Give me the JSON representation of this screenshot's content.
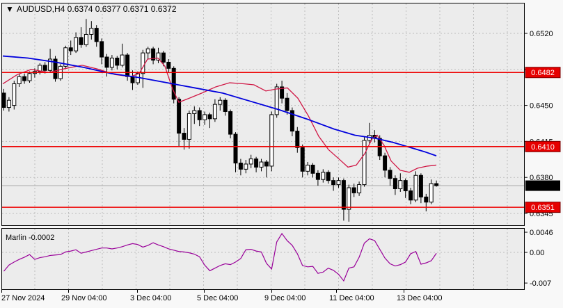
{
  "header": {
    "dropdown_icon": "▼",
    "title": "AUDUSD,H4 0.6374 0.6377 0.6371 0.6372",
    "symbol": "AUDUSD",
    "timeframe": "H4",
    "ohlc": {
      "open": "0.6374",
      "high": "0.6377",
      "low": "0.6371",
      "close": "0.6372"
    }
  },
  "indicator_header": {
    "label": "Marlin -0.0002",
    "name": "Marlin",
    "value": "-0.0002"
  },
  "price_axis": {
    "ticks": [
      "0.6520",
      "0.6485",
      "0.6450",
      "0.6415",
      "0.6380",
      "0.6345"
    ]
  },
  "indicator_axis": {
    "ticks": [
      "0.0046",
      "0.00",
      "-0.007"
    ]
  },
  "time_axis": {
    "labels": [
      "27 Nov 2024",
      "29 Nov 04:00",
      "3 Dec 04:00",
      "5 Dec 04:00",
      "9 Dec 04:00",
      "11 Dec 04:00",
      "13 Dec 04:00"
    ]
  },
  "levels": [
    {
      "value": 0.6482,
      "label": "0.6482"
    },
    {
      "value": 0.641,
      "label": "0.6410"
    },
    {
      "value": 0.6351,
      "label": "0.6351"
    }
  ],
  "current_price": {
    "value": 0.6372,
    "label": "0.6372"
  },
  "colors": {
    "page_bg": "#f8f8f8",
    "panel_bg": "#ececec",
    "grid": "#bdbdbd",
    "border": "#000000",
    "bull_candle": "#ffffff",
    "bear_candle": "#000000",
    "candle_outline": "#000000",
    "ma_blue": "#0000dd",
    "ma_red": "#d01745",
    "level_line": "#ee0000",
    "level_badge_bg": "#e60000",
    "current_badge_bg": "#000000",
    "badge_text": "#ffffff",
    "current_price_line": "#aaaaaa",
    "marlin_line": "#990099",
    "axis_text": "#000000"
  },
  "chart_data": [
    {
      "type": "candlestick",
      "title": "AUDUSD,H4",
      "timeframe": "H4",
      "ylim": [
        0.6337,
        0.6549
      ],
      "y_ticks": [
        0.652,
        0.6485,
        0.645,
        0.6415,
        0.638,
        0.6345
      ],
      "x_tick_labels": [
        "27 Nov 2024",
        "29 Nov 04:00",
        "3 Dec 04:00",
        "5 Dec 04:00",
        "9 Dec 04:00",
        "11 Dec 04:00",
        "13 Dec 04:00"
      ],
      "levels": [
        0.6482,
        0.641,
        0.6351
      ],
      "current_price": 0.6372,
      "candles_ohlc": [
        [
          0.6462,
          0.6466,
          0.6445,
          0.6448
        ],
        [
          0.6448,
          0.6458,
          0.6444,
          0.6455
        ],
        [
          0.645,
          0.6474,
          0.6446,
          0.6471
        ],
        [
          0.6471,
          0.6481,
          0.6468,
          0.6478
        ],
        [
          0.6478,
          0.6481,
          0.6471,
          0.6474
        ],
        [
          0.6474,
          0.6483,
          0.6472,
          0.6481
        ],
        [
          0.6481,
          0.6486,
          0.6477,
          0.6483
        ],
        [
          0.6483,
          0.6491,
          0.648,
          0.6489
        ],
        [
          0.6489,
          0.6492,
          0.6481,
          0.6484
        ],
        [
          0.6484,
          0.6505,
          0.6482,
          0.6495
        ],
        [
          0.6495,
          0.6498,
          0.6473,
          0.6476
        ],
        [
          0.6476,
          0.649,
          0.6474,
          0.6488
        ],
        [
          0.6488,
          0.6508,
          0.6486,
          0.6506
        ],
        [
          0.6506,
          0.6513,
          0.6499,
          0.6503
        ],
        [
          0.6503,
          0.6521,
          0.6501,
          0.6516
        ],
        [
          0.6516,
          0.6526,
          0.6506,
          0.6509
        ],
        [
          0.6509,
          0.6534,
          0.6507,
          0.6519
        ],
        [
          0.6519,
          0.6532,
          0.6514,
          0.6525
        ],
        [
          0.6525,
          0.6528,
          0.6507,
          0.6512
        ],
        [
          0.6512,
          0.6515,
          0.649,
          0.6497
        ],
        [
          0.6497,
          0.65,
          0.6478,
          0.6487
        ],
        [
          0.6487,
          0.6499,
          0.6484,
          0.6496
        ],
        [
          0.6496,
          0.6498,
          0.6485,
          0.6489
        ],
        [
          0.6489,
          0.651,
          0.6487,
          0.6499
        ],
        [
          0.6499,
          0.6501,
          0.6474,
          0.6478
        ],
        [
          0.6478,
          0.6484,
          0.6465,
          0.6472
        ],
        [
          0.6472,
          0.6483,
          0.647,
          0.6481
        ],
        [
          0.6481,
          0.6504,
          0.6467,
          0.6501
        ],
        [
          0.6501,
          0.6507,
          0.6495,
          0.6505
        ],
        [
          0.6505,
          0.6507,
          0.649,
          0.6494
        ],
        [
          0.6494,
          0.6506,
          0.6491,
          0.6501
        ],
        [
          0.6501,
          0.6503,
          0.6488,
          0.6492
        ],
        [
          0.6492,
          0.6495,
          0.6482,
          0.6486
        ],
        [
          0.6486,
          0.6488,
          0.6452,
          0.6456
        ],
        [
          0.6456,
          0.6458,
          0.641,
          0.6423
        ],
        [
          0.6423,
          0.6428,
          0.6407,
          0.6417
        ],
        [
          0.6417,
          0.6445,
          0.6408,
          0.6442
        ],
        [
          0.6442,
          0.6449,
          0.6432,
          0.6445
        ],
        [
          0.6445,
          0.6448,
          0.643,
          0.6436
        ],
        [
          0.6436,
          0.6444,
          0.6431,
          0.6441
        ],
        [
          0.6441,
          0.6443,
          0.6428,
          0.6437
        ],
        [
          0.6437,
          0.6456,
          0.6434,
          0.6451
        ],
        [
          0.6451,
          0.6458,
          0.6445,
          0.6455
        ],
        [
          0.6455,
          0.6457,
          0.644,
          0.6444
        ],
        [
          0.6444,
          0.6446,
          0.6418,
          0.6422
        ],
        [
          0.6422,
          0.6424,
          0.6385,
          0.6394
        ],
        [
          0.6394,
          0.6398,
          0.6382,
          0.6388
        ],
        [
          0.6388,
          0.6397,
          0.6384,
          0.6393
        ],
        [
          0.6393,
          0.6402,
          0.6389,
          0.6398
        ],
        [
          0.6398,
          0.64,
          0.6385,
          0.639
        ],
        [
          0.639,
          0.6398,
          0.6386,
          0.6395
        ],
        [
          0.6395,
          0.6397,
          0.638,
          0.6391
        ],
        [
          0.6391,
          0.6444,
          0.6386,
          0.6441
        ],
        [
          0.6441,
          0.6471,
          0.6438,
          0.6468
        ],
        [
          0.6468,
          0.6474,
          0.6452,
          0.6457
        ],
        [
          0.6457,
          0.6462,
          0.6441,
          0.6445
        ],
        [
          0.6445,
          0.6448,
          0.642,
          0.6425
        ],
        [
          0.6425,
          0.6429,
          0.6404,
          0.6409
        ],
        [
          0.6409,
          0.6412,
          0.638,
          0.6386
        ],
        [
          0.6386,
          0.6395,
          0.6382,
          0.6392
        ],
        [
          0.6392,
          0.6394,
          0.638,
          0.6384
        ],
        [
          0.6384,
          0.6387,
          0.6372,
          0.6378
        ],
        [
          0.6378,
          0.6388,
          0.6375,
          0.6385
        ],
        [
          0.6385,
          0.6387,
          0.6374,
          0.6377
        ],
        [
          0.6377,
          0.638,
          0.6367,
          0.6373
        ],
        [
          0.6373,
          0.638,
          0.637,
          0.6377
        ],
        [
          0.6377,
          0.6379,
          0.6338,
          0.6349
        ],
        [
          0.6349,
          0.6373,
          0.6337,
          0.637
        ],
        [
          0.637,
          0.6374,
          0.6361,
          0.6365
        ],
        [
          0.6365,
          0.6376,
          0.6362,
          0.6373
        ],
        [
          0.6373,
          0.6419,
          0.6371,
          0.6416
        ],
        [
          0.6416,
          0.6433,
          0.6412,
          0.6421
        ],
        [
          0.6421,
          0.6426,
          0.6414,
          0.6418
        ],
        [
          0.6418,
          0.6421,
          0.6397,
          0.6401
        ],
        [
          0.6401,
          0.6404,
          0.638,
          0.6387
        ],
        [
          0.6387,
          0.639,
          0.6372,
          0.6379
        ],
        [
          0.6379,
          0.6382,
          0.6363,
          0.6369
        ],
        [
          0.6369,
          0.6384,
          0.6366,
          0.6377
        ],
        [
          0.6377,
          0.6379,
          0.636,
          0.6367
        ],
        [
          0.6367,
          0.637,
          0.6354,
          0.6358
        ],
        [
          0.6358,
          0.6386,
          0.6356,
          0.6382
        ],
        [
          0.6382,
          0.6384,
          0.6355,
          0.6361
        ],
        [
          0.6361,
          0.6364,
          0.6347,
          0.6356
        ],
        [
          0.6356,
          0.6378,
          0.6354,
          0.6374
        ],
        [
          0.6374,
          0.6377,
          0.6371,
          0.6372
        ]
      ],
      "ma_blue_points": [
        [
          4,
          0.6498
        ],
        [
          40,
          0.6496
        ],
        [
          80,
          0.6492
        ],
        [
          120,
          0.6487
        ],
        [
          160,
          0.6481
        ],
        [
          200,
          0.6477
        ],
        [
          240,
          0.6472
        ],
        [
          280,
          0.6467
        ],
        [
          320,
          0.6462
        ],
        [
          360,
          0.6454
        ],
        [
          400,
          0.6446
        ],
        [
          440,
          0.6437
        ],
        [
          480,
          0.6427
        ],
        [
          510,
          0.6421
        ],
        [
          540,
          0.6418
        ],
        [
          565,
          0.6414
        ],
        [
          590,
          0.6409
        ],
        [
          610,
          0.6405
        ],
        [
          627,
          0.6401
        ]
      ],
      "ma_red_points": [
        [
          4,
          0.6471
        ],
        [
          25,
          0.648
        ],
        [
          45,
          0.6485
        ],
        [
          70,
          0.6482
        ],
        [
          95,
          0.6486
        ],
        [
          118,
          0.6489
        ],
        [
          142,
          0.6485
        ],
        [
          165,
          0.648
        ],
        [
          188,
          0.6478
        ],
        [
          200,
          0.6481
        ],
        [
          212,
          0.6495
        ],
        [
          227,
          0.6496
        ],
        [
          237,
          0.6488
        ],
        [
          248,
          0.6466
        ],
        [
          257,
          0.6453
        ],
        [
          272,
          0.6457
        ],
        [
          290,
          0.6462
        ],
        [
          310,
          0.6468
        ],
        [
          330,
          0.6472
        ],
        [
          350,
          0.6471
        ],
        [
          365,
          0.647
        ],
        [
          382,
          0.6464
        ],
        [
          398,
          0.6466
        ],
        [
          413,
          0.6467
        ],
        [
          428,
          0.6457
        ],
        [
          443,
          0.644
        ],
        [
          458,
          0.642
        ],
        [
          472,
          0.6407
        ],
        [
          487,
          0.6398
        ],
        [
          500,
          0.639
        ],
        [
          512,
          0.6392
        ],
        [
          524,
          0.6403
        ],
        [
          535,
          0.6418
        ],
        [
          542,
          0.6421
        ],
        [
          552,
          0.6411
        ],
        [
          562,
          0.6396
        ],
        [
          575,
          0.6387
        ],
        [
          588,
          0.6385
        ],
        [
          600,
          0.6389
        ],
        [
          614,
          0.6391
        ],
        [
          627,
          0.6392
        ]
      ]
    },
    {
      "type": "line",
      "name": "Marlin",
      "current_value": -0.0002,
      "ylim": [
        -0.0084,
        0.0054
      ],
      "y_ticks": [
        0.0046,
        0,
        -0.007
      ],
      "values": [
        -0.0043,
        -0.0029,
        -0.0022,
        -0.0016,
        -0.0011,
        -0.0005,
        -0.0016,
        -0.0012,
        -0.001,
        -0.0007,
        -0.0006,
        -0.0005,
        0.0001,
        0.0003,
        0.0006,
        -0.0002,
        0.0001,
        0.0004,
        0.0007,
        0.001,
        0.001,
        0.0008,
        0.001,
        0.0013,
        0.0017,
        0.002,
        0.0018,
        0.0012,
        0.0016,
        0.0022,
        0.0017,
        0.0013,
        0.0008,
        0.0005,
        0.0002,
        0.0001,
        -0.0001,
        -0.0004,
        -0.001,
        -0.0029,
        -0.0042,
        -0.0036,
        -0.003,
        -0.0026,
        -0.0028,
        -0.0022,
        -0.0014,
        0.0006,
        0.0007,
        0.0003,
        0.0001,
        -0.0025,
        -0.0038,
        0.0024,
        0.0043,
        0.0027,
        0.0016,
        -0.0003,
        -0.003,
        -0.0033,
        -0.0032,
        -0.0048,
        -0.0045,
        -0.0036,
        -0.0041,
        -0.005,
        -0.0065,
        -0.0036,
        -0.0033,
        -0.0011,
        0.0021,
        0.0031,
        0.0027,
        0.0007,
        -0.0013,
        -0.0026,
        -0.0031,
        -0.0028,
        -0.0022,
        -0.0003,
        0.0002,
        -0.0027,
        -0.0024,
        -0.0019,
        -0.0002
      ]
    }
  ]
}
